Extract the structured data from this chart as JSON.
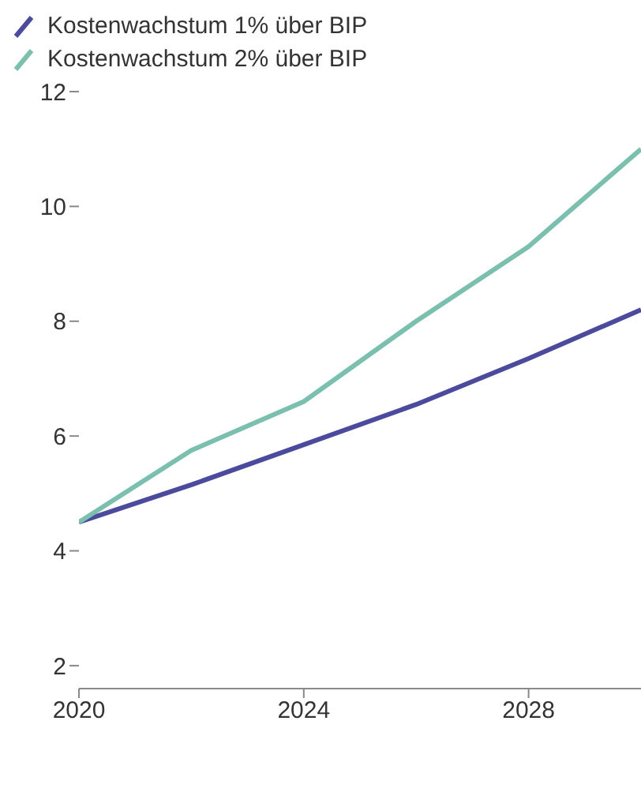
{
  "chart_data": {
    "type": "line",
    "x": [
      2020,
      2022,
      2024,
      2026,
      2028,
      2030
    ],
    "series": [
      {
        "name": "Kostenwachstum 1% über BIP",
        "color": "#4b4a9c",
        "values": [
          4.5,
          5.15,
          5.85,
          6.55,
          7.35,
          8.2
        ]
      },
      {
        "name": "Kostenwachstum 2% über BIP",
        "color": "#7bbfae",
        "values": [
          4.5,
          5.75,
          6.6,
          8.0,
          9.3,
          11.0
        ]
      }
    ],
    "xlim": [
      2020,
      2030
    ],
    "xticks": [
      2020,
      2024,
      2028
    ],
    "ylim": [
      1.6,
      12
    ],
    "yticks": [
      2,
      4,
      6,
      8,
      10,
      12
    ],
    "legend": "top left",
    "marker": "none",
    "line_style": "solid"
  }
}
